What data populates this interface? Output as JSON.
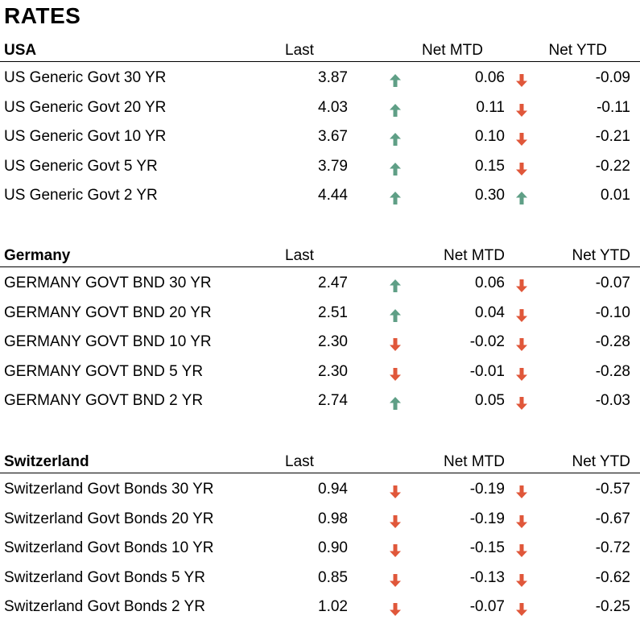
{
  "title": "RATES",
  "colors": {
    "up": "#5f9f86",
    "down": "#e0573a"
  },
  "sections": [
    {
      "name": "USA",
      "headers": {
        "last": "Last",
        "mtd": "Net MTD",
        "ytd": "Net YTD"
      },
      "rows": [
        {
          "name": "US Generic Govt 30 YR",
          "last": "3.87",
          "mtd_dir": "up",
          "mtd": "0.06",
          "ytd_dir": "down",
          "ytd": "-0.09"
        },
        {
          "name": "US Generic Govt 20 YR",
          "last": "4.03",
          "mtd_dir": "up",
          "mtd": "0.11",
          "ytd_dir": "down",
          "ytd": "-0.11"
        },
        {
          "name": "US Generic Govt 10 YR",
          "last": "3.67",
          "mtd_dir": "up",
          "mtd": "0.10",
          "ytd_dir": "down",
          "ytd": "-0.21"
        },
        {
          "name": "US Generic Govt 5 YR",
          "last": "3.79",
          "mtd_dir": "up",
          "mtd": "0.15",
          "ytd_dir": "down",
          "ytd": "-0.22"
        },
        {
          "name": "US Generic Govt 2 YR",
          "last": "4.44",
          "mtd_dir": "up",
          "mtd": "0.30",
          "ytd_dir": "up",
          "ytd": "0.01"
        }
      ]
    },
    {
      "name": "Germany",
      "headers": {
        "last": "Last",
        "mtd": "Net MTD",
        "ytd": "Net YTD"
      },
      "rows": [
        {
          "name": "GERMANY GOVT BND 30 YR",
          "last": "2.47",
          "mtd_dir": "up",
          "mtd": "0.06",
          "ytd_dir": "down",
          "ytd": "-0.07"
        },
        {
          "name": "GERMANY GOVT BND 20 YR",
          "last": "2.51",
          "mtd_dir": "up",
          "mtd": "0.04",
          "ytd_dir": "down",
          "ytd": "-0.10"
        },
        {
          "name": "GERMANY GOVT BND 10 YR",
          "last": "2.30",
          "mtd_dir": "down",
          "mtd": "-0.02",
          "ytd_dir": "down",
          "ytd": "-0.28"
        },
        {
          "name": "GERMANY GOVT BND 5 YR",
          "last": "2.30",
          "mtd_dir": "down",
          "mtd": "-0.01",
          "ytd_dir": "down",
          "ytd": "-0.28"
        },
        {
          "name": "GERMANY GOVT BND 2 YR",
          "last": "2.74",
          "mtd_dir": "up",
          "mtd": "0.05",
          "ytd_dir": "down",
          "ytd": "-0.03"
        }
      ]
    },
    {
      "name": "Switzerland",
      "headers": {
        "last": "Last",
        "mtd": "Net MTD",
        "ytd": "Net YTD"
      },
      "rows": [
        {
          "name": "Switzerland Govt Bonds 30 YR",
          "last": "0.94",
          "mtd_dir": "down",
          "mtd": "-0.19",
          "ytd_dir": "down",
          "ytd": "-0.57"
        },
        {
          "name": "Switzerland Govt Bonds 20 YR",
          "last": "0.98",
          "mtd_dir": "down",
          "mtd": "-0.19",
          "ytd_dir": "down",
          "ytd": "-0.67"
        },
        {
          "name": "Switzerland Govt Bonds 10 YR",
          "last": "0.90",
          "mtd_dir": "down",
          "mtd": "-0.15",
          "ytd_dir": "down",
          "ytd": "-0.72"
        },
        {
          "name": "Switzerland Govt Bonds 5 YR",
          "last": "0.85",
          "mtd_dir": "down",
          "mtd": "-0.13",
          "ytd_dir": "down",
          "ytd": "-0.62"
        },
        {
          "name": "Switzerland Govt Bonds 2 YR",
          "last": "1.02",
          "mtd_dir": "down",
          "mtd": "-0.07",
          "ytd_dir": "down",
          "ytd": "-0.25"
        }
      ]
    }
  ]
}
